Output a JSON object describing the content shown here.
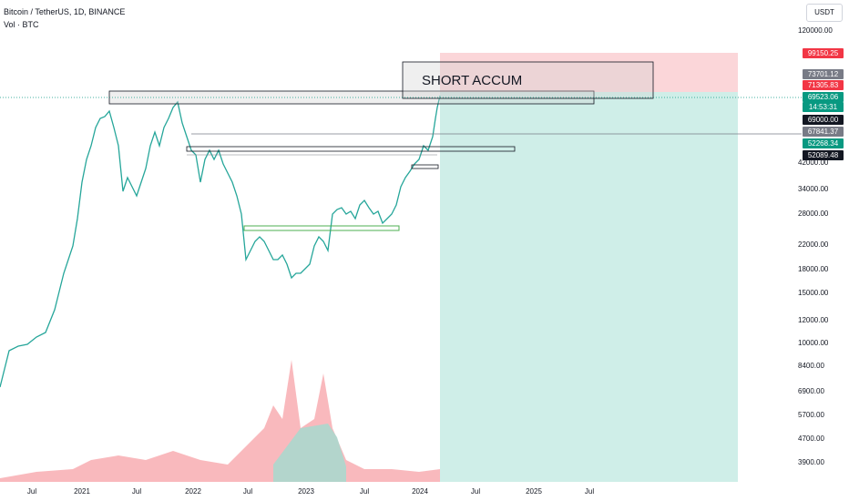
{
  "header": {
    "symbol_line": "Bitcoin / TetherUS, 1D, BINANCE",
    "volume_line": "Vol · BTC"
  },
  "currency_button": "USDT",
  "annotation": "SHORT ACCUM",
  "price_axis": {
    "ticks": [
      "120000.00",
      "42000.00",
      "34000.00",
      "28000.00",
      "22000.00",
      "18000.00",
      "15000.00",
      "12000.00",
      "10000.00",
      "8400.00",
      "6900.00",
      "5700.00",
      "4700.00",
      "3900.00"
    ],
    "tags": [
      {
        "text": "99150.25",
        "color": "#f23645"
      },
      {
        "text": "73701.12",
        "color": "#787b86"
      },
      {
        "text": "71305.83",
        "color": "#f23645"
      },
      {
        "text": "69523.06",
        "color": "#089981"
      },
      {
        "text": "14:53:31",
        "color": "#089981"
      },
      {
        "text": "69000.00",
        "color": "#131722"
      },
      {
        "text": "67841.37",
        "color": "#787b86"
      },
      {
        "text": "52268.34",
        "color": "#089981"
      },
      {
        "text": "52089.48",
        "color": "#131722"
      }
    ]
  },
  "time_axis": {
    "labels": [
      "Jul",
      "2021",
      "Jul",
      "2022",
      "Jul",
      "2023",
      "Jul",
      "2024",
      "Jul",
      "2025",
      "Jul"
    ]
  },
  "colors": {
    "up": "#089981",
    "down": "#f23645",
    "profit_zone": "#cfeee8",
    "loss_zone": "#fbd6d9"
  }
}
